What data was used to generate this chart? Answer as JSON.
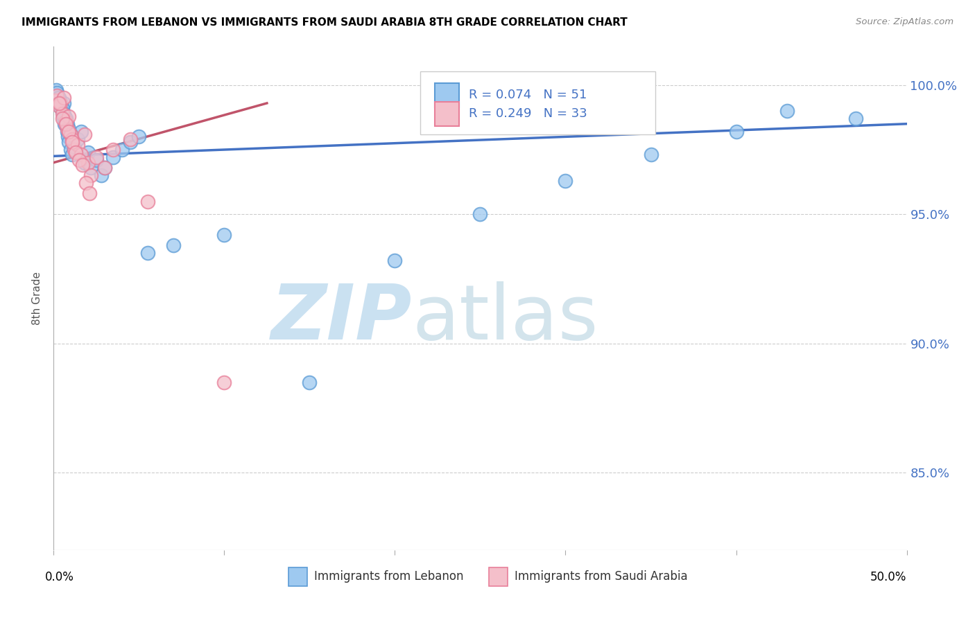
{
  "title": "IMMIGRANTS FROM LEBANON VS IMMIGRANTS FROM SAUDI ARABIA 8TH GRADE CORRELATION CHART",
  "source": "Source: ZipAtlas.com",
  "ylabel": "8th Grade",
  "xlim": [
    0.0,
    50.0
  ],
  "ylim": [
    82.0,
    101.5
  ],
  "yticks": [
    85.0,
    90.0,
    95.0,
    100.0
  ],
  "ytick_labels": [
    "85.0%",
    "90.0%",
    "95.0%",
    "100.0%"
  ],
  "legend_r1": "R = 0.074",
  "legend_n1": "N = 51",
  "legend_r2": "R = 0.249",
  "legend_n2": "N = 33",
  "legend_label1": "Immigrants from Lebanon",
  "legend_label2": "Immigrants from Saudi Arabia",
  "lebanon_x": [
    0.15,
    0.2,
    0.25,
    0.3,
    0.35,
    0.4,
    0.45,
    0.5,
    0.55,
    0.6,
    0.65,
    0.7,
    0.75,
    0.8,
    0.85,
    0.9,
    1.0,
    1.1,
    1.2,
    1.4,
    1.6,
    1.8,
    2.0,
    2.2,
    2.5,
    2.8,
    3.0,
    3.5,
    4.0,
    4.5,
    5.0,
    5.5,
    7.0,
    10.0,
    15.0,
    20.0,
    25.0,
    30.0,
    35.0,
    40.0,
    43.0,
    47.0,
    0.2,
    0.3,
    0.4,
    0.5,
    0.6,
    0.7,
    0.8,
    0.9,
    1.0
  ],
  "lebanon_y": [
    99.8,
    99.6,
    99.5,
    99.4,
    99.3,
    99.2,
    99.1,
    99.0,
    98.8,
    99.3,
    98.5,
    98.6,
    98.4,
    98.2,
    98.0,
    97.8,
    97.5,
    97.3,
    97.6,
    97.9,
    98.2,
    97.0,
    97.4,
    96.8,
    97.1,
    96.5,
    96.8,
    97.2,
    97.5,
    97.8,
    98.0,
    93.5,
    93.8,
    94.2,
    88.5,
    93.2,
    95.0,
    96.3,
    97.3,
    98.2,
    99.0,
    98.7,
    99.7,
    99.5,
    99.3,
    99.1,
    98.9,
    98.7,
    98.5,
    98.3,
    98.1
  ],
  "saudi_x": [
    0.1,
    0.2,
    0.3,
    0.4,
    0.5,
    0.6,
    0.7,
    0.8,
    0.9,
    1.0,
    1.1,
    1.2,
    1.4,
    1.6,
    1.8,
    2.0,
    2.2,
    2.5,
    3.0,
    3.5,
    4.5,
    0.3,
    0.5,
    0.7,
    0.9,
    1.1,
    1.3,
    1.5,
    1.7,
    1.9,
    2.1,
    5.5,
    10.0
  ],
  "saudi_y": [
    99.4,
    99.6,
    99.2,
    99.3,
    98.9,
    99.5,
    98.6,
    98.3,
    98.8,
    98.1,
    97.9,
    97.5,
    97.7,
    97.3,
    98.1,
    97.0,
    96.5,
    97.2,
    96.8,
    97.5,
    97.9,
    99.3,
    98.7,
    98.5,
    98.2,
    97.8,
    97.4,
    97.1,
    96.9,
    96.2,
    95.8,
    95.5,
    88.5
  ],
  "trendline_leb_x0": 0.0,
  "trendline_leb_x1": 50.0,
  "trendline_leb_y0": 97.25,
  "trendline_leb_y1": 98.5,
  "trendline_sau_x0": 0.0,
  "trendline_sau_x1": 12.5,
  "trendline_sau_y0": 97.0,
  "trendline_sau_y1": 99.3,
  "color_lebanon_face": "#9EC9F0",
  "color_lebanon_edge": "#5B9BD5",
  "color_saudi_face": "#F4BFCA",
  "color_saudi_edge": "#E87F99",
  "color_trendline_lebanon": "#4472C4",
  "color_trendline_saudi": "#C0546A",
  "watermark_zip_color": "#C5DEF0",
  "watermark_atlas_color": "#B0CEDE",
  "background_color": "#FFFFFF",
  "title_fontsize": 11,
  "tick_color_right": "#4472C4"
}
